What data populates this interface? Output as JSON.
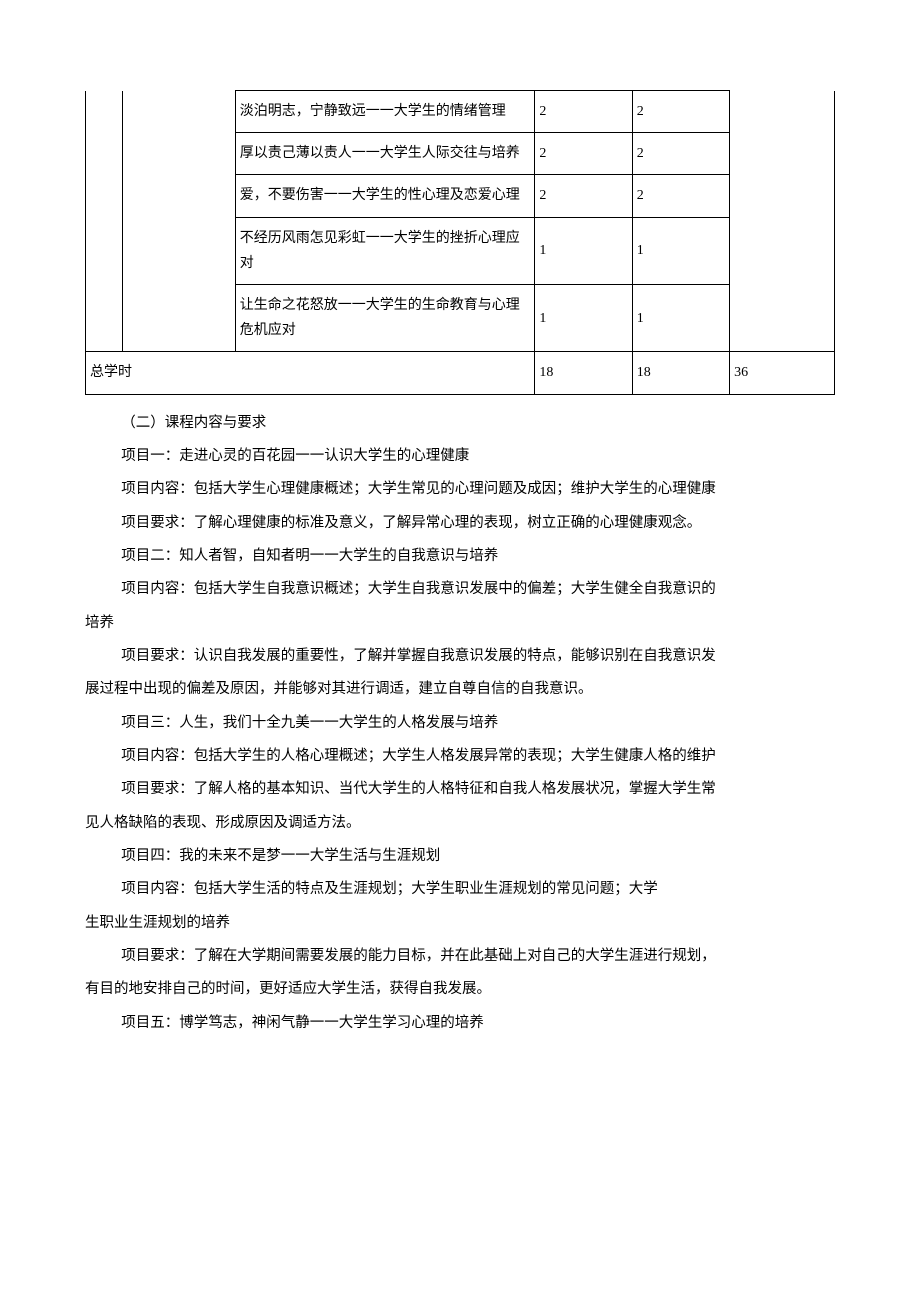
{
  "table": {
    "rows": [
      {
        "desc": "淡泊明志，宁静致远一一大学生的情绪管理",
        "v1": "2",
        "v2": "2",
        "v3": ""
      },
      {
        "desc": "厚以责己薄以责人一一大学生人际交往与培养",
        "v1": "2",
        "v2": "2",
        "v3": ""
      },
      {
        "desc": "爱，不要伤害一一大学生的性心理及恋爱心理",
        "v1": "2",
        "v2": "2",
        "v3": ""
      },
      {
        "desc": "不经历风雨怎见彩虹一一大学生的挫折心理应对",
        "v1": "1",
        "v2": "1",
        "v3": ""
      },
      {
        "desc": "让生命之花怒放一一大学生的生命教育与心理危机应对",
        "v1": "1",
        "v2": "1",
        "v3": ""
      }
    ],
    "total_label": "总学时",
    "total_v1": "18",
    "total_v2": "18",
    "total_v3": "36"
  },
  "section_heading": "（二）课程内容与要求",
  "paragraphs": [
    "项目一：走进心灵的百花园一一认识大学生的心理健康",
    "项目内容：包括大学生心理健康概述；大学生常见的心理问题及成因；维护大学生的心理健康",
    "项目要求：了解心理健康的标准及意义，了解异常心理的表现，树立正确的心理健康观念。",
    "项目二：知人者智，自知者明一一大学生的自我意识与培养",
    "项目内容：包括大学生自我意识概述；大学生自我意识发展中的偏差；大学生健全自我意识的"
  ],
  "para_wrap1_tail": "培养",
  "paragraphs2": [
    "项目要求：认识自我发展的重要性，了解并掌握自我意识发展的特点，能够识别在自我意识发"
  ],
  "para_wrap2_tail": "展过程中出现的偏差及原因，并能够对其进行调适，建立自尊自信的自我意识。",
  "paragraphs3": [
    "项目三：人生，我们十全九美一一大学生的人格发展与培养",
    "项目内容：包括大学生的人格心理概述；大学生人格发展异常的表现；大学生健康人格的维护",
    "项目要求：了解人格的基本知识、当代大学生的人格特征和自我人格发展状况，掌握大学生常"
  ],
  "para_wrap3_tail": "见人格缺陷的表现、形成原因及调适方法。",
  "paragraphs4": [
    "项目四：我的未来不是梦一一大学生活与生涯规划",
    "项目内容：包括大学生活的特点及生涯规划；大学生职业生涯规划的常见问题；大学"
  ],
  "para_wrap4_tail": "生职业生涯规划的培养",
  "paragraphs5": [
    "项目要求：了解在大学期间需要发展的能力目标，并在此基础上对自己的大学生涯进行规划，"
  ],
  "para_wrap5_tail": "有目的地安排自己的时间，更好适应大学生活，获得自我发展。",
  "paragraphs6": [
    "项目五：博学笃志，神闲气静一一大学生学习心理的培养"
  ]
}
